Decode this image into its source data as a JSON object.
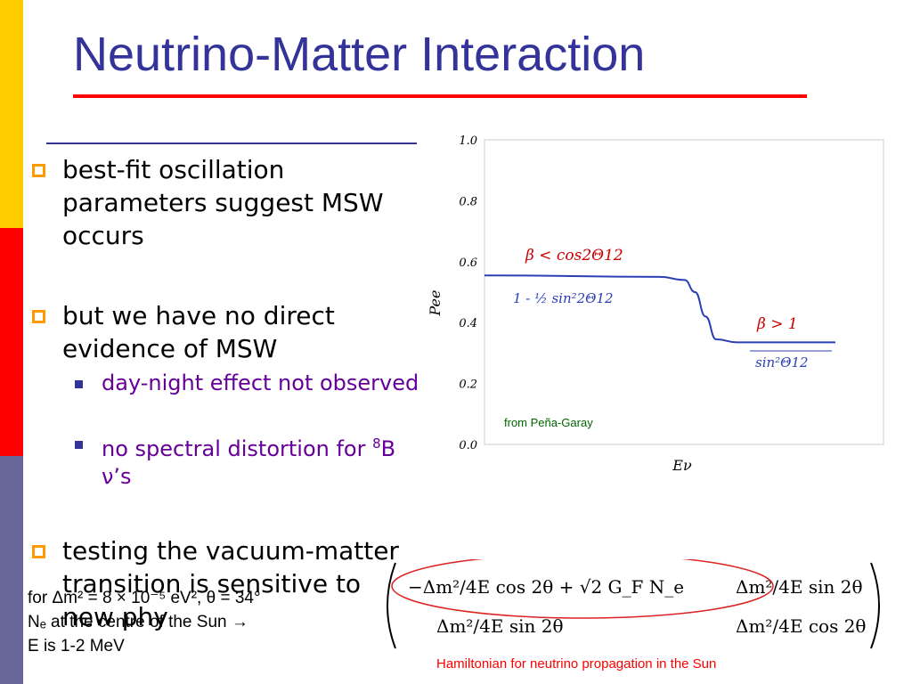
{
  "slide": {
    "title": "Neutrino-Matter Interaction",
    "colors": {
      "title": "#333399",
      "accent_rule": "#ff0000",
      "bullet_marker": "#ff9900",
      "sub_text": "#660099",
      "stripe_top": "#ffcc00",
      "stripe_mid": "#ff0000",
      "stripe_bottom": "#666699"
    }
  },
  "bullets": [
    {
      "text": "best-fit oscillation parameters suggest MSW occurs"
    },
    {
      "text": "but we have no direct evidence of MSW",
      "sub": [
        {
          "text": "day-night effect not observed"
        },
        {
          "text_prefix": "no spectral distortion for ",
          "sup": "8",
          "text_suffix": "B ν’s"
        }
      ]
    },
    {
      "text": "testing the vacuum-matter transition is sensitive to new phy"
    }
  ],
  "chart_data": {
    "type": "line",
    "title": "",
    "xlabel": "Eν",
    "ylabel": "Pee",
    "ylim": [
      0.0,
      1.0
    ],
    "yticks": [
      "0.0",
      "0.2",
      "0.4",
      "0.6",
      "0.8",
      "1.0"
    ],
    "xticks": [],
    "series": [
      {
        "x": [
          0.0,
          0.5,
          0.57,
          0.6,
          0.63,
          0.66,
          0.72,
          1.0
        ],
        "y": [
          0.555,
          0.55,
          0.54,
          0.5,
          0.42,
          0.345,
          0.335,
          0.335
        ]
      }
    ],
    "annotations": {
      "low_regime": "β < cos2Θ12",
      "low_formula": "1 - ½ sin²2Θ12",
      "high_regime": "β > 1",
      "high_formula": "sin²Θ12"
    },
    "credit": "from Peña-Garay"
  },
  "notes": {
    "line1": "for Δm² = 8 × 10⁻⁵ eV², θ = 34°",
    "line2": "Nₑ at the centre of the Sun →",
    "line3": "E is 1-2 MeV"
  },
  "hamiltonian": {
    "m11": "−Δm²/4E cos 2θ + √2 G_F N_e",
    "m12": "Δm²/4E sin 2θ",
    "m21": "Δm²/4E sin 2θ",
    "m22": "Δm²/4E cos 2θ",
    "caption": "Hamiltonian for neutrino propagation in the Sun"
  }
}
